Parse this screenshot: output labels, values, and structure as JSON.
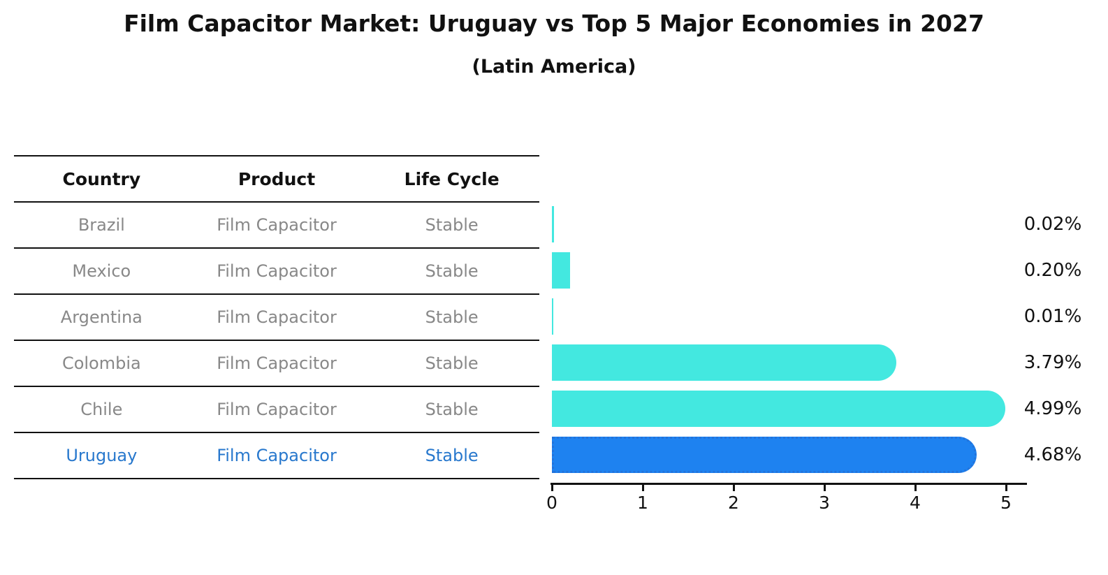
{
  "title": "Film Capacitor Market: Uruguay vs Top 5 Major Economies in 2027",
  "subtitle": "(Latin America)",
  "table": {
    "headers": [
      "Country",
      "Product",
      "Life Cycle"
    ],
    "rows": [
      {
        "country": "Brazil",
        "product": "Film Capacitor",
        "life_cycle": "Stable",
        "highlight": false
      },
      {
        "country": "Mexico",
        "product": "Film Capacitor",
        "life_cycle": "Stable",
        "highlight": false
      },
      {
        "country": "Argentina",
        "product": "Film Capacitor",
        "life_cycle": "Stable",
        "highlight": false
      },
      {
        "country": "Colombia",
        "product": "Film Capacitor",
        "life_cycle": "Stable",
        "highlight": false
      },
      {
        "country": "Chile",
        "product": "Film Capacitor",
        "life_cycle": "Stable",
        "highlight": false
      },
      {
        "country": "Uruguay",
        "product": "Film Capacitor",
        "life_cycle": "Stable",
        "highlight": true
      }
    ]
  },
  "chart_data": {
    "type": "bar",
    "orientation": "horizontal",
    "title": "Film Capacitor Market: Uruguay vs Top 5 Major Economies in 2027",
    "subtitle": "(Latin America)",
    "categories": [
      "Brazil",
      "Mexico",
      "Argentina",
      "Colombia",
      "Chile",
      "Uruguay"
    ],
    "values": [
      0.02,
      0.2,
      0.01,
      3.79,
      4.99,
      4.68
    ],
    "value_labels": [
      "0.02%",
      "0.20%",
      "0.01%",
      "3.79%",
      "4.99%",
      "4.68%"
    ],
    "x_ticks": [
      "0",
      "1",
      "2",
      "3",
      "4",
      "5"
    ],
    "xlim": [
      0,
      5.25
    ],
    "grid": false,
    "legend": false,
    "highlight_index": 5,
    "bar_color": "#43e8e0",
    "highlight_bar_color": "#1e82f0",
    "highlight_border_color": "#2273db",
    "highlight_text_color": "#2878cd",
    "table_text_color": "#888888",
    "axis_color": "#111111"
  }
}
